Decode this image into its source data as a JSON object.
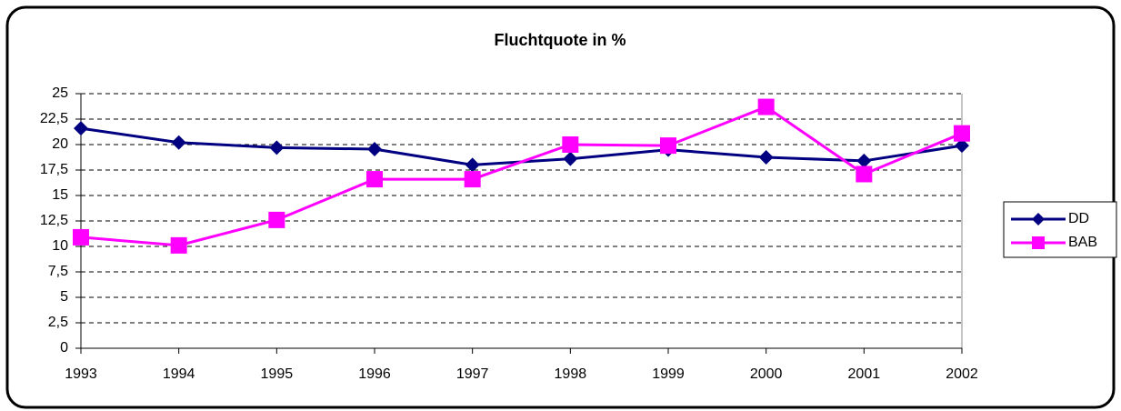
{
  "chart_data": {
    "type": "line",
    "title": "Fluchtquote in %",
    "categories": [
      "1993",
      "1994",
      "1995",
      "1996",
      "1997",
      "1998",
      "1999",
      "2000",
      "2001",
      "2002"
    ],
    "series": [
      {
        "name": "DD",
        "color": "#000080",
        "marker": "diamond",
        "values": [
          21.6,
          20.2,
          19.7,
          19.55,
          18.0,
          18.6,
          19.5,
          18.75,
          18.4,
          19.9
        ]
      },
      {
        "name": "BAB",
        "color": "#ff00ff",
        "marker": "square",
        "values": [
          10.9,
          10.1,
          12.6,
          16.6,
          16.6,
          20.0,
          19.9,
          23.7,
          17.1,
          21.1
        ]
      }
    ],
    "ylim": [
      0,
      25
    ],
    "yticks": [
      0,
      {
        "value": 2.5,
        "label": "2,5"
      },
      5,
      {
        "value": 7.5,
        "label": "7,5"
      },
      10,
      {
        "value": 12.5,
        "label": "12,5"
      },
      15,
      {
        "value": 17.5,
        "label": "17,5"
      },
      20,
      {
        "value": 22.5,
        "label": "22,5"
      },
      25
    ],
    "grid": true,
    "legend": "right"
  }
}
